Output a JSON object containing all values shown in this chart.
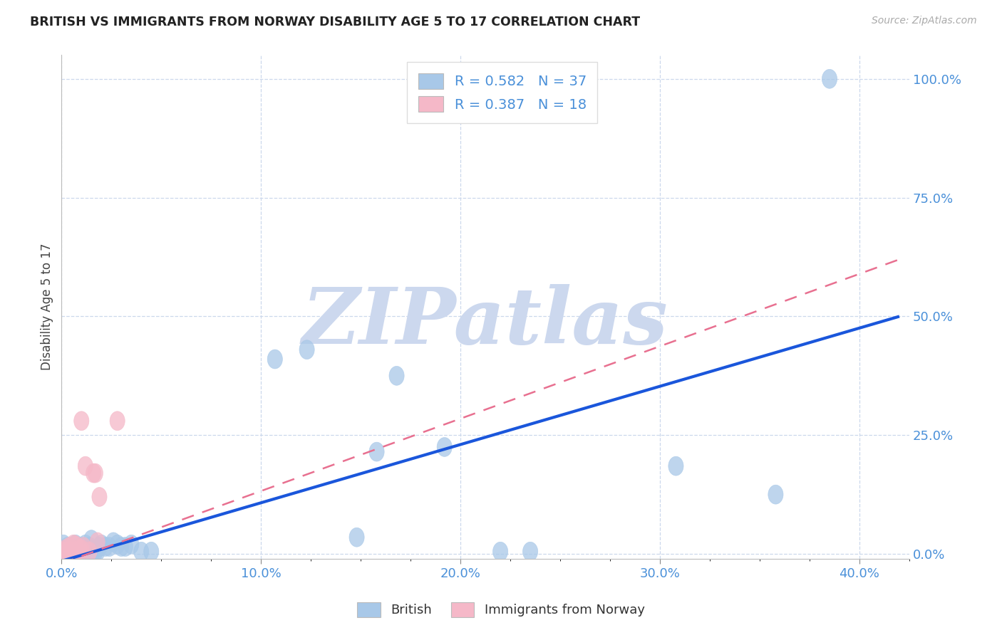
{
  "title": "BRITISH VS IMMIGRANTS FROM NORWAY DISABILITY AGE 5 TO 17 CORRELATION CHART",
  "source": "Source: ZipAtlas.com",
  "ylabel": "Disability Age 5 to 17",
  "x_tick_labels": [
    "0.0%",
    "",
    "",
    "",
    "",
    "",
    "",
    "",
    "",
    "",
    "10.0%",
    "",
    "",
    "",
    "",
    "",
    "",
    "",
    "",
    "",
    "20.0%",
    "",
    "",
    "",
    "",
    "",
    "",
    "",
    "",
    "",
    "30.0%",
    "",
    "",
    "",
    "",
    "",
    "",
    "",
    "",
    "",
    "40.0%"
  ],
  "x_ticks_major": [
    0.0,
    0.1,
    0.2,
    0.3,
    0.4
  ],
  "x_ticks_major_labels": [
    "0.0%",
    "10.0%",
    "20.0%",
    "30.0%",
    "40.0%"
  ],
  "y_tick_labels": [
    "0.0%",
    "25.0%",
    "50.0%",
    "75.0%",
    "100.0%"
  ],
  "y_ticks": [
    0.0,
    0.25,
    0.5,
    0.75,
    1.0
  ],
  "xlim": [
    0.0,
    0.42
  ],
  "ylim": [
    -0.01,
    1.05
  ],
  "british_color": "#a8c8e8",
  "norway_color": "#f5b8c8",
  "trend_british_color": "#1a56db",
  "trend_norway_color": "#e87090",
  "british_scatter": [
    [
      0.001,
      0.02
    ],
    [
      0.002,
      0.01
    ],
    [
      0.003,
      0.015
    ],
    [
      0.004,
      0.005
    ],
    [
      0.005,
      0.005
    ],
    [
      0.006,
      0.01
    ],
    [
      0.007,
      0.02
    ],
    [
      0.008,
      0.005
    ],
    [
      0.009,
      0.01
    ],
    [
      0.01,
      0.015
    ],
    [
      0.011,
      0.01
    ],
    [
      0.012,
      0.02
    ],
    [
      0.013,
      0.01
    ],
    [
      0.014,
      0.015
    ],
    [
      0.015,
      0.03
    ],
    [
      0.016,
      0.005
    ],
    [
      0.017,
      0.005
    ],
    [
      0.018,
      0.005
    ],
    [
      0.019,
      0.015
    ],
    [
      0.02,
      0.02
    ],
    [
      0.022,
      0.015
    ],
    [
      0.024,
      0.015
    ],
    [
      0.026,
      0.025
    ],
    [
      0.028,
      0.02
    ],
    [
      0.03,
      0.015
    ],
    [
      0.032,
      0.015
    ],
    [
      0.035,
      0.02
    ],
    [
      0.04,
      0.005
    ],
    [
      0.045,
      0.005
    ],
    [
      0.107,
      0.41
    ],
    [
      0.123,
      0.43
    ],
    [
      0.148,
      0.035
    ],
    [
      0.158,
      0.215
    ],
    [
      0.168,
      0.375
    ],
    [
      0.192,
      0.225
    ],
    [
      0.22,
      0.005
    ],
    [
      0.235,
      0.005
    ],
    [
      0.308,
      0.185
    ],
    [
      0.358,
      0.125
    ],
    [
      0.385,
      1.0
    ]
  ],
  "norway_scatter": [
    [
      0.001,
      0.005
    ],
    [
      0.002,
      0.01
    ],
    [
      0.003,
      0.005
    ],
    [
      0.004,
      0.015
    ],
    [
      0.005,
      0.005
    ],
    [
      0.006,
      0.02
    ],
    [
      0.007,
      0.018
    ],
    [
      0.008,
      0.005
    ],
    [
      0.009,
      0.01
    ],
    [
      0.01,
      0.01
    ],
    [
      0.011,
      0.015
    ],
    [
      0.012,
      0.185
    ],
    [
      0.014,
      0.005
    ],
    [
      0.016,
      0.17
    ],
    [
      0.017,
      0.17
    ],
    [
      0.018,
      0.025
    ],
    [
      0.019,
      0.12
    ],
    [
      0.028,
      0.28
    ],
    [
      0.01,
      0.28
    ]
  ],
  "british_trend_x": [
    0.0,
    0.42
  ],
  "british_trend_y": [
    -0.015,
    0.5
  ],
  "norway_trend_x": [
    0.0,
    0.42
  ],
  "norway_trend_y": [
    -0.02,
    0.62
  ],
  "background_color": "#ffffff",
  "watermark_text": "ZIPatlas",
  "watermark_color": "#ccd8ee",
  "legend_label_1": "British",
  "legend_label_2": "Immigrants from Norway",
  "tick_color": "#4a90d9",
  "ylabel_color": "#444444",
  "title_color": "#222222"
}
